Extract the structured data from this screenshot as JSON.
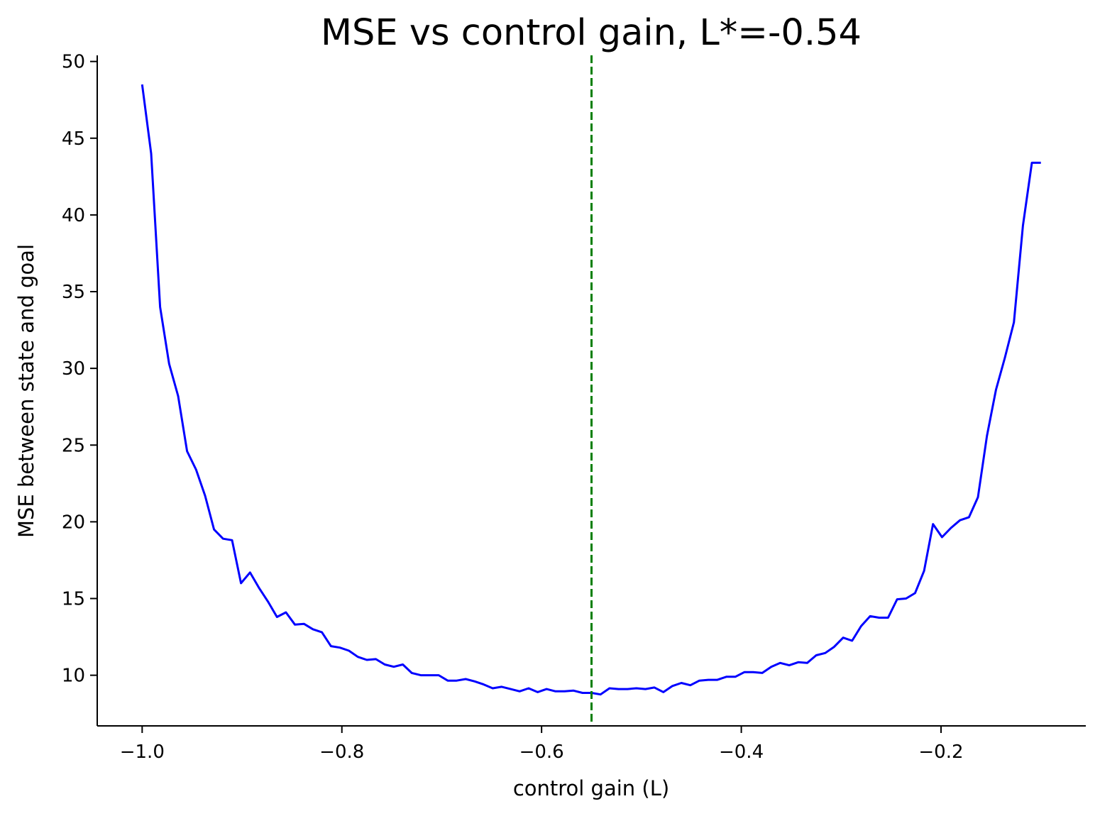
{
  "chart_data": {
    "type": "line",
    "title": "MSE vs control gain, L*=-0.54",
    "xlabel": "control gain (L)",
    "ylabel": "MSE between state and goal",
    "xlim": [
      -1.045,
      -0.055
    ],
    "ylim": [
      6.7,
      50.4
    ],
    "xticks": [
      -1.0,
      -0.8,
      -0.6,
      -0.4,
      -0.2
    ],
    "xtick_labels": [
      "−1.0",
      "−0.8",
      "−0.6",
      "−0.4",
      "−0.2"
    ],
    "yticks": [
      10,
      15,
      20,
      25,
      30,
      35,
      40,
      45,
      50
    ],
    "ytick_labels": [
      "10",
      "15",
      "20",
      "25",
      "30",
      "35",
      "40",
      "45",
      "50"
    ],
    "grid": false,
    "vline": {
      "x": -0.55,
      "color": "#007f00",
      "style": "dashed"
    },
    "series": [
      {
        "color": "#0000ff",
        "x": [
          -1.0,
          -0.991,
          -0.982,
          -0.973,
          -0.964,
          -0.955,
          -0.946,
          -0.937,
          -0.928,
          -0.919,
          -0.91,
          -0.901,
          -0.892,
          -0.883,
          -0.874,
          -0.865,
          -0.856,
          -0.847,
          -0.838,
          -0.829,
          -0.82,
          -0.811,
          -0.802,
          -0.793,
          -0.784,
          -0.775,
          -0.766,
          -0.757,
          -0.748,
          -0.739,
          -0.73,
          -0.721,
          -0.712,
          -0.703,
          -0.694,
          -0.685,
          -0.676,
          -0.667,
          -0.658,
          -0.649,
          -0.64,
          -0.631,
          -0.622,
          -0.613,
          -0.604,
          -0.595,
          -0.586,
          -0.577,
          -0.568,
          -0.559,
          -0.55,
          -0.541,
          -0.532,
          -0.523,
          -0.514,
          -0.505,
          -0.496,
          -0.487,
          -0.478,
          -0.469,
          -0.46,
          -0.451,
          -0.442,
          -0.433,
          -0.424,
          -0.415,
          -0.406,
          -0.397,
          -0.388,
          -0.379,
          -0.37,
          -0.361,
          -0.352,
          -0.343,
          -0.334,
          -0.325,
          -0.316,
          -0.307,
          -0.298,
          -0.289,
          -0.28,
          -0.271,
          -0.262,
          -0.253,
          -0.244,
          -0.235,
          -0.226,
          -0.217,
          -0.208,
          -0.199,
          -0.19,
          -0.181,
          -0.172,
          -0.163,
          -0.154,
          -0.145,
          -0.136,
          -0.127,
          -0.118,
          -0.109,
          -0.1
        ],
        "values": [
          48.5,
          44.0,
          34.0,
          30.3,
          28.2,
          24.6,
          23.4,
          21.7,
          19.5,
          18.9,
          18.8,
          16.0,
          16.7,
          15.7,
          14.8,
          13.8,
          14.1,
          13.3,
          13.35,
          13.0,
          12.8,
          11.9,
          11.8,
          11.6,
          11.2,
          11.0,
          11.05,
          10.7,
          10.55,
          10.7,
          10.15,
          10.0,
          10.0,
          10.0,
          9.65,
          9.65,
          9.75,
          9.6,
          9.4,
          9.15,
          9.25,
          9.1,
          8.95,
          9.15,
          8.9,
          9.1,
          8.95,
          8.95,
          9.0,
          8.85,
          8.85,
          8.75,
          9.15,
          9.1,
          9.1,
          9.15,
          9.1,
          9.2,
          8.9,
          9.3,
          9.5,
          9.35,
          9.65,
          9.7,
          9.7,
          9.9,
          9.9,
          10.2,
          10.2,
          10.15,
          10.55,
          10.8,
          10.65,
          10.85,
          10.8,
          11.3,
          11.45,
          11.85,
          12.45,
          12.25,
          13.2,
          13.85,
          13.75,
          13.75,
          14.95,
          15.0,
          15.35,
          16.8,
          19.85,
          19.0,
          19.6,
          20.1,
          20.3,
          21.6,
          25.6,
          28.6,
          30.7,
          33.0,
          39.3,
          43.4,
          43.4
        ]
      }
    ]
  }
}
